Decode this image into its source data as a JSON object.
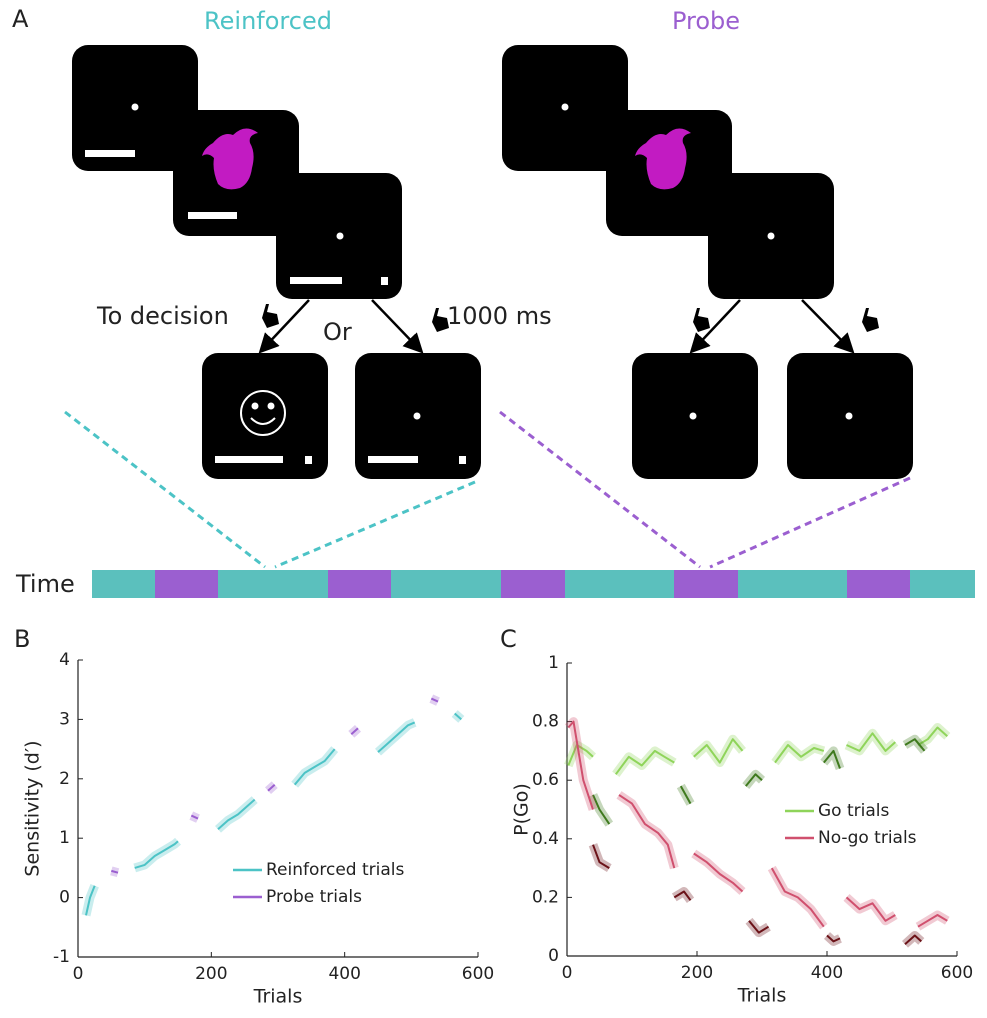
{
  "panels": {
    "a": "A",
    "b": "B",
    "c": "C"
  },
  "diagram": {
    "reinforced_title": "Reinforced",
    "probe_title": "Probe",
    "to_decision": "To decision",
    "or": "Or",
    "delay": "1000 ms",
    "time_label": "Time"
  },
  "chart_data": [
    {
      "type": "line",
      "xlabel": "Trials",
      "ylabel": "Sensitivity (d′)",
      "xlim": [
        0,
        600
      ],
      "ylim": [
        -1,
        4
      ],
      "xticks": [
        0,
        200,
        400,
        600
      ],
      "yticks": [
        -1,
        0,
        1,
        2,
        3,
        4
      ],
      "legend": "lower right",
      "series": [
        {
          "name": "Reinforced trials",
          "color": "#4cc3c6",
          "x": [
            12,
            18,
            25,
            50,
            85,
            100,
            115,
            130,
            145,
            150,
            180,
            210,
            225,
            240,
            255,
            265,
            300,
            325,
            340,
            355,
            370,
            385,
            420,
            450,
            465,
            480,
            495,
            505,
            540,
            565,
            575
          ],
          "values": [
            -0.3,
            0.0,
            0.2,
            null,
            0.5,
            0.55,
            0.7,
            0.8,
            0.9,
            0.95,
            null,
            1.15,
            1.3,
            1.4,
            1.55,
            1.65,
            null,
            1.9,
            2.1,
            2.2,
            2.3,
            2.5,
            null,
            2.45,
            2.6,
            2.75,
            2.9,
            2.95,
            null,
            3.1,
            3.0
          ]
        },
        {
          "name": "Probe trials",
          "color": "#9b5fd0",
          "x": [
            50,
            60,
            120,
            170,
            180,
            230,
            285,
            295,
            350,
            410,
            420,
            480,
            530,
            540
          ],
          "values": [
            0.45,
            0.42,
            null,
            1.38,
            1.33,
            null,
            1.8,
            1.9,
            null,
            2.75,
            2.85,
            null,
            3.35,
            3.3
          ]
        }
      ]
    },
    {
      "type": "line",
      "xlabel": "Trials",
      "ylabel": "P(Go)",
      "xlim": [
        0,
        600
      ],
      "ylim": [
        0,
        1
      ],
      "xticks": [
        0,
        200,
        400,
        600
      ],
      "yticks": [
        0,
        0.2,
        0.4,
        0.6,
        0.8,
        1
      ],
      "legend": "center right",
      "series": [
        {
          "name": "Go trials",
          "color": "#8fd45a",
          "x": [
            2,
            15,
            30,
            40,
            60,
            75,
            95,
            115,
            135,
            150,
            165,
            180,
            195,
            215,
            235,
            255,
            270,
            300,
            320,
            340,
            360,
            380,
            395,
            410,
            430,
            450,
            470,
            490,
            505,
            520,
            540,
            555,
            570,
            585
          ],
          "values": [
            0.65,
            0.72,
            0.7,
            0.68,
            null,
            0.62,
            0.68,
            0.65,
            0.7,
            0.68,
            0.66,
            null,
            0.68,
            0.72,
            0.66,
            0.74,
            0.7,
            null,
            0.66,
            0.72,
            0.68,
            0.71,
            0.7,
            null,
            0.72,
            0.7,
            0.76,
            0.7,
            0.73,
            null,
            0.72,
            0.74,
            0.78,
            0.75
          ]
        },
        {
          "color": "#3f7a1e",
          "x": [
            40,
            50,
            65,
            120,
            175,
            190,
            230,
            275,
            290,
            300,
            350,
            395,
            410,
            420,
            470,
            520,
            535,
            550
          ],
          "values": [
            0.55,
            0.5,
            0.45,
            null,
            0.58,
            0.52,
            null,
            0.58,
            0.62,
            0.6,
            null,
            0.66,
            0.7,
            0.64,
            null,
            0.72,
            0.74,
            0.7
          ]
        },
        {
          "name": "No-go trials",
          "color": "#d0506e",
          "x": [
            2,
            10,
            25,
            40,
            60,
            80,
            100,
            120,
            140,
            155,
            165,
            180,
            195,
            215,
            235,
            255,
            270,
            295,
            315,
            335,
            355,
            375,
            395,
            410,
            430,
            450,
            470,
            490,
            505,
            520,
            540,
            555,
            570,
            585
          ],
          "values": [
            0.78,
            0.8,
            0.6,
            0.5,
            null,
            0.55,
            0.52,
            0.45,
            0.42,
            0.38,
            0.3,
            null,
            0.35,
            0.32,
            0.28,
            0.25,
            0.22,
            null,
            0.3,
            0.22,
            0.2,
            0.16,
            0.1,
            null,
            0.2,
            0.16,
            0.18,
            0.12,
            0.14,
            null,
            0.1,
            0.12,
            0.14,
            0.12
          ]
        },
        {
          "color": "#6b1218",
          "x": [
            40,
            50,
            65,
            110,
            165,
            180,
            190,
            240,
            280,
            295,
            310,
            360,
            400,
            410,
            420,
            470,
            520,
            535,
            545
          ],
          "values": [
            0.38,
            0.32,
            0.3,
            null,
            0.2,
            0.22,
            0.19,
            null,
            0.12,
            0.08,
            0.1,
            null,
            0.07,
            0.05,
            0.06,
            null,
            0.04,
            0.07,
            0.05
          ]
        }
      ]
    }
  ]
}
